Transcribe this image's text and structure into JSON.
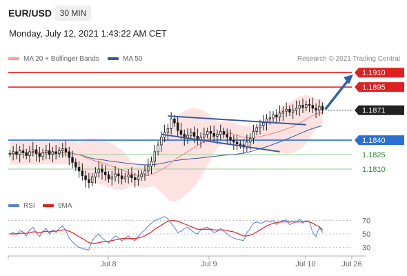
{
  "header": {
    "pair": "EUR/USD",
    "timeframe": "30 MIN",
    "timestamp": "Monday, July 12, 2021 1:43:22 AM CET"
  },
  "legend": {
    "ma20": "MA 20 + Bollinger Bands",
    "ma50": "MA 50",
    "credit": "Research © 2021 Trading Central",
    "rsi": "RSI",
    "ma9": "9MA"
  },
  "colors": {
    "ma20": "#f08080",
    "ma50": "#3a5a9a",
    "band": "#fde2e2",
    "candle": "#1a1a1a",
    "resistance": "#e02020",
    "support": "#2a6fd6",
    "support_minor": "#2d8a2d",
    "trendline": "#3a5a9a",
    "rsi": "#5b7fd6",
    "rsi_ma": "#e02020"
  },
  "chart_data": [
    {
      "type": "candlestick",
      "title": "EUR/USD 30 MIN",
      "x_ticks": [
        "Jul 8",
        "Jul 9",
        "Jul 10",
        "Jul 26"
      ],
      "ylim": [
        1.1785,
        1.1918
      ],
      "closes": [
        1.1826,
        1.1828,
        1.1825,
        1.1829,
        1.1827,
        1.1824,
        1.1828,
        1.183,
        1.1826,
        1.1823,
        1.1827,
        1.1829,
        1.1825,
        1.1828,
        1.1826,
        1.1829,
        1.1831,
        1.1828,
        1.1822,
        1.1817,
        1.1812,
        1.1808,
        1.1803,
        1.1799,
        1.1796,
        1.1802,
        1.1806,
        1.181,
        1.1807,
        1.1804,
        1.18,
        1.1802,
        1.1805,
        1.1803,
        1.18,
        1.1802,
        1.1804,
        1.1801,
        1.1799,
        1.1802,
        1.1805,
        1.1808,
        1.1813,
        1.1818,
        1.1828,
        1.1835,
        1.1843,
        1.1848,
        1.1852,
        1.1862,
        1.1858,
        1.185,
        1.1846,
        1.1842,
        1.1845,
        1.1848,
        1.1844,
        1.184,
        1.1843,
        1.1846,
        1.1849,
        1.1847,
        1.1844,
        1.1846,
        1.1849,
        1.1846,
        1.1843,
        1.184,
        1.1838,
        1.1836,
        1.1835,
        1.1833,
        1.1838,
        1.1842,
        1.1849,
        1.1853,
        1.1855,
        1.1858,
        1.1862,
        1.1863,
        1.1866,
        1.1864,
        1.1868,
        1.187,
        1.1872,
        1.1869,
        1.1871,
        1.1873,
        1.1876,
        1.1874,
        1.1877,
        1.1876,
        1.1873,
        1.1871,
        1.1875,
        1.1871
      ],
      "levels": [
        {
          "label": "1.1910",
          "value": 1.191,
          "style": "resistance"
        },
        {
          "label": "1.1895",
          "value": 1.1895,
          "style": "resistance"
        },
        {
          "label": "1.1871",
          "value": 1.1871,
          "style": "last"
        },
        {
          "label": "1.1840",
          "value": 1.184,
          "style": "support"
        },
        {
          "label": "1.1825",
          "value": 1.1825,
          "style": "support_minor"
        },
        {
          "label": "1.1810",
          "value": 1.181,
          "style": "support_minor"
        }
      ],
      "series": [
        {
          "name": "MA 20 + Bollinger Bands"
        },
        {
          "name": "MA 50"
        }
      ]
    },
    {
      "type": "line",
      "ylim": [
        20,
        80
      ],
      "y_ticks": [
        "70",
        "50",
        "30"
      ],
      "rsi": [
        50,
        52,
        49,
        55,
        53,
        47,
        56,
        60,
        52,
        46,
        54,
        58,
        50,
        56,
        52,
        58,
        62,
        55,
        44,
        38,
        33,
        30,
        28,
        27,
        26,
        40,
        46,
        50,
        44,
        40,
        36,
        42,
        47,
        44,
        39,
        44,
        47,
        42,
        40,
        46,
        52,
        56,
        62,
        66,
        70,
        72,
        74,
        76,
        73,
        66,
        60,
        52,
        54,
        58,
        60,
        56,
        52,
        50,
        56,
        59,
        60,
        56,
        52,
        54,
        58,
        54,
        50,
        46,
        44,
        42,
        41,
        40,
        52,
        58,
        66,
        68,
        66,
        67,
        70,
        68,
        70,
        64,
        68,
        70,
        71,
        64,
        66,
        68,
        72,
        66,
        70,
        68,
        52,
        46,
        60,
        52
      ],
      "ma9": [
        50,
        50,
        50,
        51,
        51,
        51,
        52,
        53,
        53,
        52,
        53,
        54,
        53,
        54,
        54,
        55,
        56,
        56,
        54,
        52,
        49,
        46,
        43,
        40,
        37,
        36,
        36,
        37,
        38,
        39,
        39,
        40,
        41,
        42,
        43,
        43,
        43,
        43,
        43,
        44,
        45,
        47,
        50,
        53,
        57,
        60,
        63,
        66,
        69,
        70,
        70,
        69,
        67,
        65,
        63,
        61,
        59,
        57,
        57,
        57,
        57,
        57,
        56,
        56,
        56,
        56,
        55,
        54,
        53,
        51,
        49,
        47,
        47,
        48,
        50,
        53,
        56,
        59,
        62,
        64,
        66,
        67,
        68,
        68,
        68,
        68,
        68,
        68,
        68,
        68,
        69,
        68,
        66,
        63,
        61,
        56
      ],
      "series": [
        {
          "name": "RSI"
        },
        {
          "name": "9MA"
        }
      ]
    }
  ]
}
